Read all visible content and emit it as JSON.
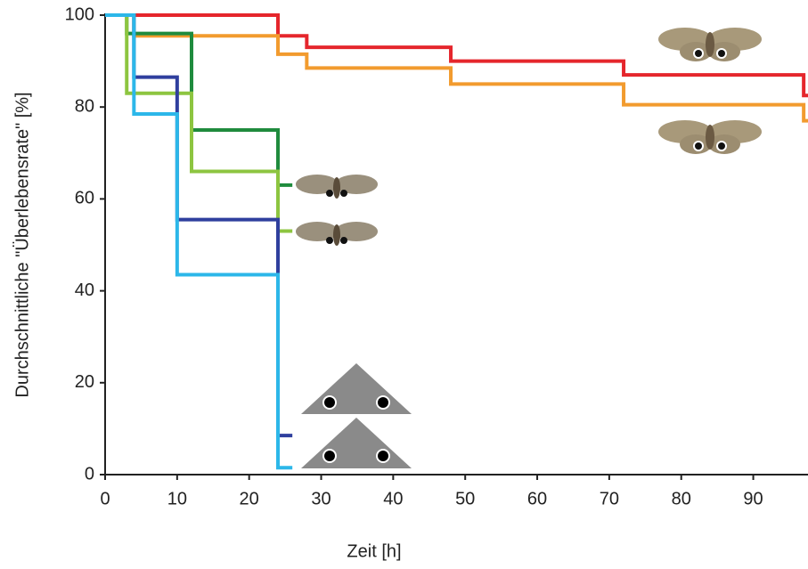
{
  "chart_data": {
    "type": "step",
    "x_label": "Zeit [h]",
    "y_label": "Durchschnittliche \"Überlebensrate\" [%]",
    "xlim": [
      0,
      97.6
    ],
    "ylim": [
      0,
      100
    ],
    "xticks": [
      0,
      10,
      20,
      30,
      40,
      50,
      60,
      70,
      80,
      90
    ],
    "yticks": [
      0,
      20,
      40,
      60,
      80,
      100
    ],
    "series": [
      {
        "color": "#e5262c",
        "x": [
          0,
          24,
          28,
          48,
          72,
          97,
          97.6
        ],
        "values": [
          100,
          95.5,
          93,
          90,
          87,
          82.5,
          82.5
        ]
      },
      {
        "color": "#f29b2e",
        "x": [
          0,
          4,
          24,
          28,
          48,
          72,
          97,
          97.6
        ],
        "values": [
          100,
          95.5,
          91.5,
          88.5,
          85,
          80.5,
          77,
          77
        ]
      },
      {
        "color": "#1f8b3d",
        "x": [
          0,
          3,
          12,
          24,
          26
        ],
        "values": [
          100,
          96,
          75,
          63,
          63
        ]
      },
      {
        "color": "#8dc540",
        "x": [
          0,
          3,
          12,
          24,
          26
        ],
        "values": [
          100,
          83,
          66,
          53,
          53
        ]
      },
      {
        "color": "#2f3f9e",
        "x": [
          0,
          4,
          10,
          24,
          26
        ],
        "values": [
          100,
          86.5,
          55.5,
          8.5,
          8.5
        ]
      },
      {
        "color": "#2cb7e9",
        "x": [
          0,
          4,
          10,
          24,
          26
        ],
        "values": [
          100,
          78.5,
          43.5,
          1.5,
          1.5
        ]
      }
    ]
  }
}
